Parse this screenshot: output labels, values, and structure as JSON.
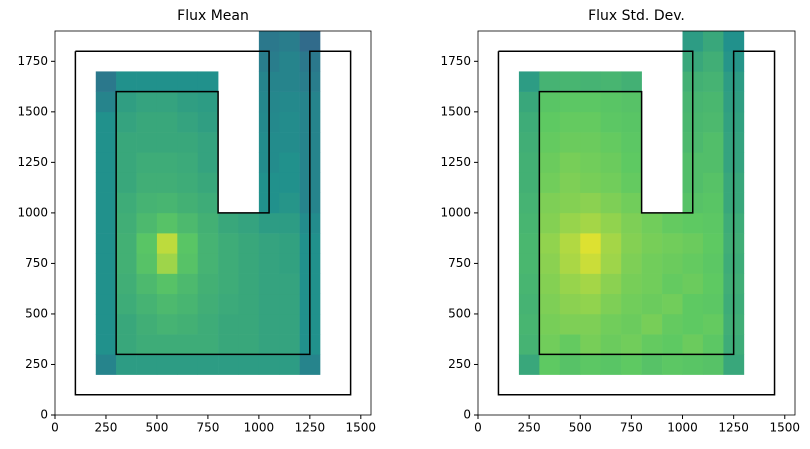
{
  "chart_data": [
    {
      "type": "heatmap",
      "title": "Flux Mean",
      "colormap": "viridis",
      "clim": [
        0,
        1
      ],
      "xlim": [
        0,
        1550
      ],
      "ylim": [
        0,
        1900
      ],
      "xticks": [
        0,
        250,
        500,
        750,
        1000,
        1250,
        1500
      ],
      "yticks": [
        0,
        250,
        500,
        750,
        1000,
        1250,
        1500,
        1750
      ],
      "xbins": [
        200,
        300,
        400,
        500,
        600,
        700,
        800,
        900,
        1000,
        1100,
        1200,
        1300
      ],
      "ybins": [
        200,
        300,
        400,
        500,
        600,
        700,
        800,
        900,
        1000,
        1100,
        1200,
        1300,
        1400,
        1500,
        1600,
        1700,
        1800,
        1900
      ],
      "z": [
        [
          0.45,
          0.55,
          0.55,
          0.55,
          0.55,
          0.55,
          0.55,
          0.55,
          0.55,
          0.55,
          0.45
        ],
        [
          0.5,
          0.6,
          0.62,
          0.62,
          0.62,
          0.62,
          0.6,
          0.6,
          0.58,
          0.58,
          0.5
        ],
        [
          0.5,
          0.6,
          0.63,
          0.65,
          0.64,
          0.62,
          0.6,
          0.6,
          0.58,
          0.58,
          0.5
        ],
        [
          0.5,
          0.62,
          0.65,
          0.68,
          0.66,
          0.63,
          0.61,
          0.6,
          0.58,
          0.58,
          0.5
        ],
        [
          0.5,
          0.63,
          0.68,
          0.72,
          0.68,
          0.64,
          0.62,
          0.6,
          0.58,
          0.58,
          0.5
        ],
        [
          0.5,
          0.64,
          0.72,
          0.85,
          0.72,
          0.65,
          0.62,
          0.6,
          0.58,
          0.57,
          0.5
        ],
        [
          0.5,
          0.64,
          0.73,
          0.9,
          0.73,
          0.65,
          0.62,
          0.6,
          0.58,
          0.57,
          0.5
        ],
        [
          0.5,
          0.63,
          0.68,
          0.72,
          0.68,
          0.64,
          0.6,
          0.58,
          0.55,
          0.55,
          0.48
        ],
        [
          0.5,
          0.62,
          0.65,
          0.66,
          0.64,
          0.62,
          null,
          null,
          0.5,
          0.52,
          0.45
        ],
        [
          0.5,
          0.6,
          0.63,
          0.63,
          0.62,
          0.6,
          null,
          null,
          0.5,
          0.5,
          0.45
        ],
        [
          0.5,
          0.6,
          0.62,
          0.62,
          0.61,
          0.58,
          null,
          null,
          0.48,
          0.5,
          0.45
        ],
        [
          0.5,
          0.6,
          0.6,
          0.6,
          0.6,
          0.58,
          null,
          null,
          0.48,
          0.48,
          0.45
        ],
        [
          0.5,
          0.58,
          0.6,
          0.6,
          0.58,
          0.56,
          null,
          null,
          0.47,
          0.48,
          0.45
        ],
        [
          0.45,
          0.56,
          0.58,
          0.58,
          0.56,
          0.55,
          null,
          null,
          0.46,
          0.47,
          0.45
        ],
        [
          0.4,
          0.5,
          0.5,
          0.5,
          0.5,
          0.5,
          null,
          null,
          0.45,
          0.45,
          0.42
        ],
        [
          null,
          null,
          null,
          null,
          null,
          null,
          null,
          null,
          0.42,
          0.45,
          0.4
        ],
        [
          null,
          null,
          null,
          null,
          null,
          null,
          null,
          null,
          0.4,
          0.42,
          0.35
        ]
      ],
      "outline": {
        "color": "#000000",
        "x": [
          100,
          1050,
          1050,
          800,
          800,
          300,
          300,
          1250,
          1250,
          1450,
          1450,
          100,
          100
        ],
        "y": [
          1800,
          1800,
          1000,
          1000,
          1600,
          1600,
          300,
          300,
          1800,
          1800,
          100,
          100,
          1800
        ]
      }
    },
    {
      "type": "heatmap",
      "title": "Flux Std. Dev.",
      "colormap": "viridis",
      "clim": [
        0,
        1
      ],
      "xlim": [
        0,
        1550
      ],
      "ylim": [
        0,
        1900
      ],
      "xticks": [
        0,
        250,
        500,
        750,
        1000,
        1250,
        1500
      ],
      "yticks": [
        0,
        250,
        500,
        750,
        1000,
        1250,
        1500,
        1750
      ],
      "xbins": [
        200,
        300,
        400,
        500,
        600,
        700,
        800,
        900,
        1000,
        1100,
        1200,
        1300
      ],
      "ybins": [
        200,
        300,
        400,
        500,
        600,
        700,
        800,
        900,
        1000,
        1100,
        1200,
        1300,
        1400,
        1500,
        1600,
        1700,
        1800,
        1900
      ],
      "z": [
        [
          0.6,
          0.75,
          0.72,
          0.74,
          0.73,
          0.75,
          0.72,
          0.74,
          0.73,
          0.72,
          0.6
        ],
        [
          0.65,
          0.78,
          0.76,
          0.79,
          0.77,
          0.78,
          0.76,
          0.75,
          0.77,
          0.74,
          0.62
        ],
        [
          0.66,
          0.79,
          0.8,
          0.8,
          0.78,
          0.77,
          0.79,
          0.76,
          0.75,
          0.76,
          0.63
        ],
        [
          0.65,
          0.8,
          0.82,
          0.83,
          0.8,
          0.78,
          0.77,
          0.78,
          0.75,
          0.74,
          0.62
        ],
        [
          0.66,
          0.81,
          0.84,
          0.86,
          0.82,
          0.79,
          0.78,
          0.76,
          0.77,
          0.75,
          0.63
        ],
        [
          0.67,
          0.82,
          0.87,
          0.92,
          0.85,
          0.8,
          0.78,
          0.77,
          0.76,
          0.74,
          0.62
        ],
        [
          0.67,
          0.83,
          0.88,
          0.95,
          0.86,
          0.81,
          0.79,
          0.78,
          0.77,
          0.75,
          0.63
        ],
        [
          0.66,
          0.81,
          0.84,
          0.86,
          0.83,
          0.8,
          0.78,
          0.76,
          0.75,
          0.74,
          0.62
        ],
        [
          0.65,
          0.8,
          0.81,
          0.82,
          0.8,
          0.78,
          null,
          null,
          0.72,
          0.73,
          0.6
        ],
        [
          0.64,
          0.78,
          0.8,
          0.79,
          0.78,
          0.76,
          null,
          null,
          0.7,
          0.72,
          0.6
        ],
        [
          0.64,
          0.77,
          0.79,
          0.78,
          0.77,
          0.75,
          null,
          null,
          0.7,
          0.7,
          0.58
        ],
        [
          0.63,
          0.76,
          0.77,
          0.77,
          0.76,
          0.74,
          null,
          null,
          0.68,
          0.7,
          0.58
        ],
        [
          0.62,
          0.75,
          0.76,
          0.76,
          0.74,
          0.73,
          null,
          null,
          0.67,
          0.68,
          0.57
        ],
        [
          0.6,
          0.73,
          0.74,
          0.74,
          0.73,
          0.72,
          null,
          null,
          0.66,
          0.67,
          0.56
        ],
        [
          0.55,
          0.65,
          0.66,
          0.65,
          0.66,
          0.64,
          null,
          null,
          0.64,
          0.65,
          0.55
        ],
        [
          null,
          null,
          null,
          null,
          null,
          null,
          null,
          null,
          0.6,
          0.63,
          0.52
        ],
        [
          null,
          null,
          null,
          null,
          null,
          null,
          null,
          null,
          0.55,
          0.6,
          0.5
        ]
      ],
      "outline": {
        "color": "#000000",
        "x": [
          100,
          1050,
          1050,
          800,
          800,
          300,
          300,
          1250,
          1250,
          1450,
          1450,
          100,
          100
        ],
        "y": [
          1800,
          1800,
          1000,
          1000,
          1600,
          1600,
          300,
          300,
          1800,
          1800,
          100,
          100,
          1800
        ]
      }
    }
  ]
}
